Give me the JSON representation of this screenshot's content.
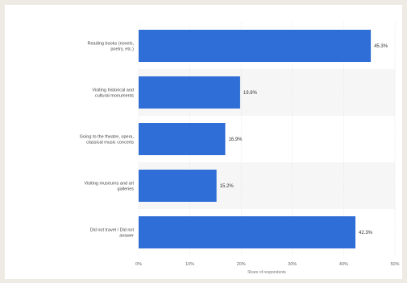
{
  "chart_data": {
    "type": "bar",
    "orientation": "horizontal",
    "categories": [
      "Reading books (novels, poetry, etc.)",
      "Visiting historical and cultural monuments",
      "Going to the theatre, opera, classical music concerts",
      "Visiting museums and art galleries",
      "Did not travel / Did not answer"
    ],
    "values": [
      45.3,
      19.8,
      16.9,
      15.2,
      42.3
    ],
    "value_labels": [
      "45.3%",
      "19.8%",
      "16.9%",
      "15.2%",
      "42.3%"
    ],
    "xlabel": "Share of respondents",
    "xlim": [
      0,
      50
    ],
    "xticks": [
      "0%",
      "10%",
      "20%",
      "30%",
      "40%",
      "50%"
    ],
    "bar_color": "#2f6ed6",
    "band_color": "#f6f6f6",
    "legend": "none",
    "grid": true
  }
}
